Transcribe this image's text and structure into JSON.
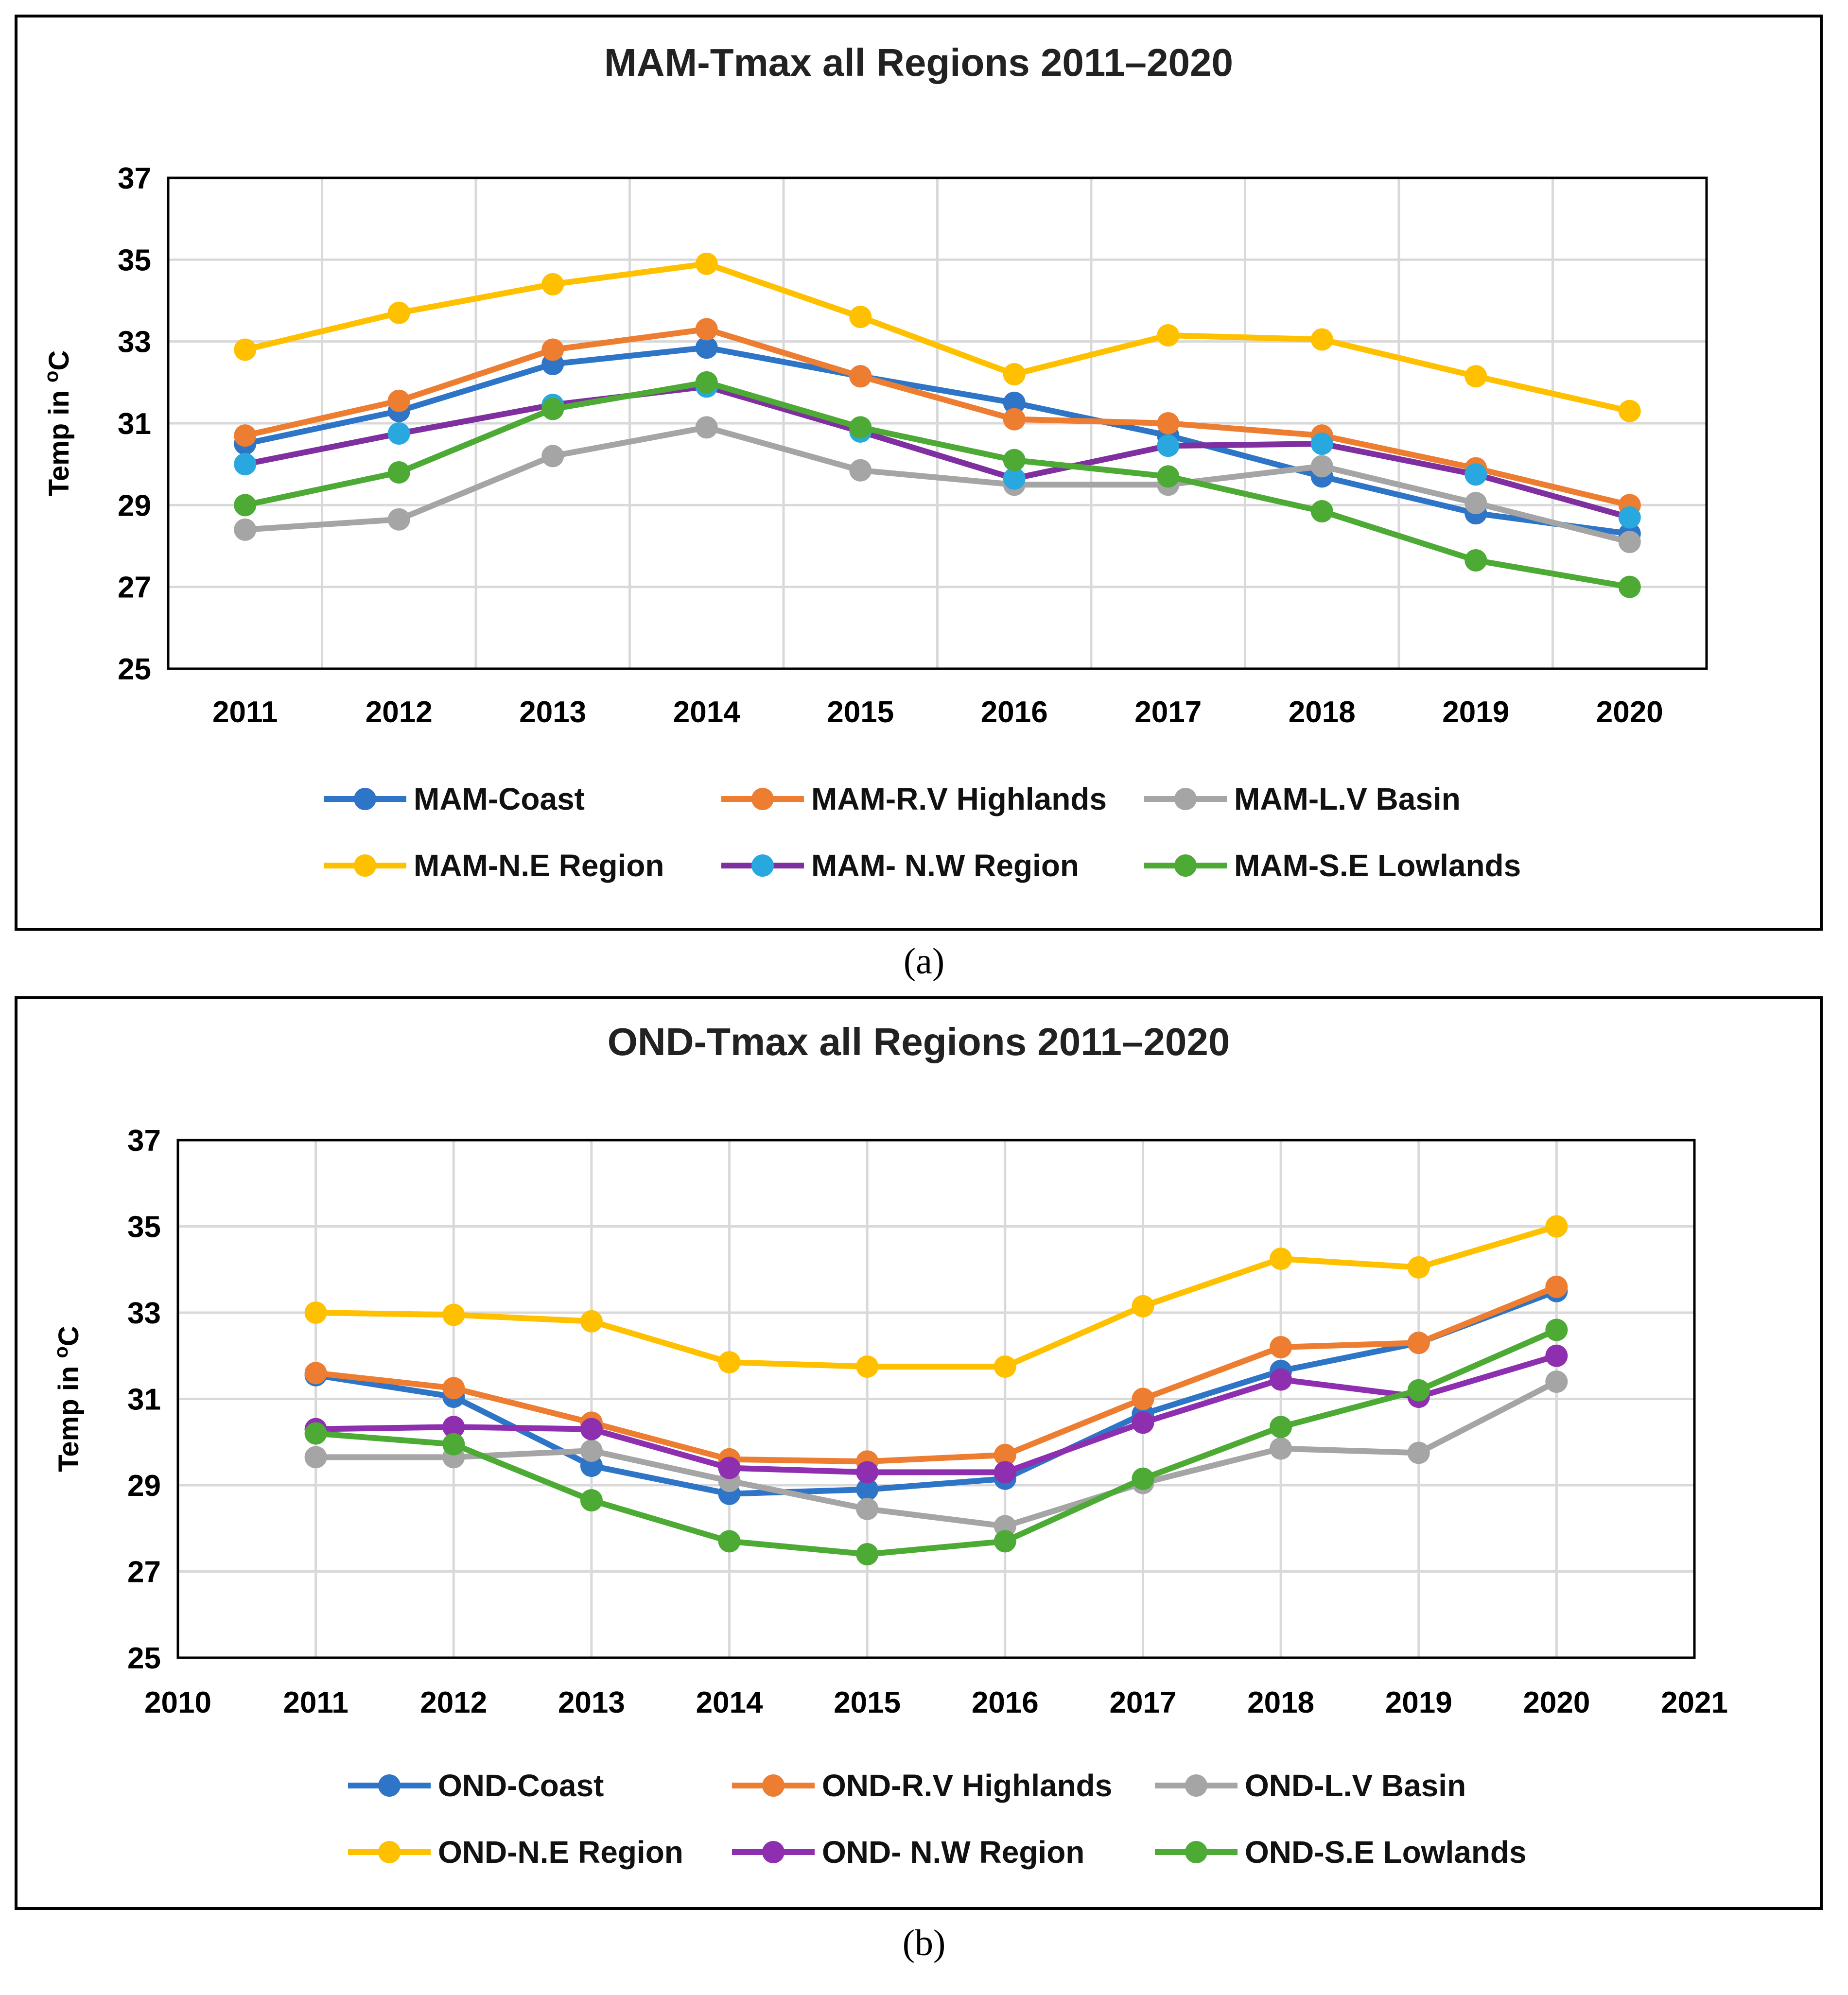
{
  "chart_data": [
    {
      "type": "line",
      "title": "MAM-Tmax all Regions 2011–2020",
      "ylabel": "Temp in oC",
      "ylabel_main": "Temp in ",
      "ylabel_sup": "o",
      "ylabel_unit": "C",
      "xlabel": "",
      "ylim": [
        25,
        37
      ],
      "yticks": [
        25,
        27,
        29,
        31,
        33,
        35,
        37
      ],
      "xlim": [
        2010.5,
        2020.5
      ],
      "xticks": [
        2011,
        2012,
        2013,
        2014,
        2015,
        2016,
        2017,
        2018,
        2019,
        2020
      ],
      "grid": true,
      "legend_position": "bottom",
      "caption": "(a)",
      "x": [
        2011,
        2012,
        2013,
        2014,
        2015,
        2016,
        2017,
        2018,
        2019,
        2020
      ],
      "series": [
        {
          "name": "MAM-Coast",
          "color": "#2E75C7",
          "values": [
            30.5,
            31.3,
            32.45,
            32.85,
            32.15,
            31.5,
            30.7,
            29.7,
            28.8,
            28.3
          ]
        },
        {
          "name": "MAM-R.V Highlands",
          "color": "#ED7D31",
          "values": [
            30.7,
            31.55,
            32.8,
            33.3,
            32.15,
            31.1,
            31.0,
            30.7,
            29.9,
            29.0
          ]
        },
        {
          "name": "MAM-L.V Basin",
          "color": "#A5A5A5",
          "values": [
            28.4,
            28.65,
            30.2,
            30.9,
            29.85,
            29.5,
            29.5,
            29.95,
            29.05,
            28.1
          ]
        },
        {
          "name": "MAM-N.E Region",
          "color": "#FFC000",
          "values": [
            32.8,
            33.7,
            34.4,
            34.9,
            33.6,
            32.2,
            33.15,
            33.05,
            32.15,
            31.3
          ]
        },
        {
          "name": "MAM- N.W Region",
          "color": "#1E9BE0",
          "marker": "#29A8E0",
          "line": "#7F2FA0",
          "values": [
            30.0,
            30.75,
            31.45,
            31.9,
            30.8,
            29.65,
            30.45,
            30.5,
            29.75,
            28.7
          ]
        },
        {
          "name": "MAM-S.E Lowlands",
          "color": "#4CAA35",
          "values": [
            29.0,
            29.8,
            31.35,
            32.0,
            30.9,
            30.1,
            29.7,
            28.85,
            27.65,
            27.0
          ]
        }
      ]
    },
    {
      "type": "line",
      "title": "OND-Tmax all Regions 2011–2020",
      "ylabel": "Temp in oC",
      "ylabel_main": "Temp in ",
      "ylabel_sup": "o",
      "ylabel_unit": "C",
      "xlabel": "",
      "ylim": [
        25,
        37
      ],
      "yticks": [
        25,
        27,
        29,
        31,
        33,
        35,
        37
      ],
      "xlim": [
        2010,
        2021
      ],
      "xticks": [
        2010,
        2011,
        2012,
        2013,
        2014,
        2015,
        2016,
        2017,
        2018,
        2019,
        2020,
        2021
      ],
      "grid": true,
      "legend_position": "bottom",
      "caption": "(b)",
      "x": [
        2011,
        2012,
        2013,
        2014,
        2015,
        2016,
        2017,
        2018,
        2019,
        2020
      ],
      "series": [
        {
          "name": "OND-Coast",
          "color": "#2E75C7",
          "values": [
            31.55,
            31.05,
            29.45,
            28.8,
            28.9,
            29.15,
            30.65,
            31.65,
            32.3,
            33.5
          ]
        },
        {
          "name": "OND-R.V Highlands",
          "color": "#ED7D31",
          "values": [
            31.6,
            31.25,
            30.45,
            29.6,
            29.55,
            29.7,
            31.0,
            32.2,
            32.3,
            33.6
          ]
        },
        {
          "name": "OND-L.V Basin",
          "color": "#A5A5A5",
          "values": [
            29.65,
            29.65,
            29.8,
            29.1,
            28.45,
            28.05,
            29.05,
            29.85,
            29.75,
            31.4
          ]
        },
        {
          "name": "OND-N.E Region",
          "color": "#FFC000",
          "values": [
            33.0,
            32.95,
            32.8,
            31.85,
            31.75,
            31.75,
            33.15,
            34.25,
            34.05,
            35.0
          ]
        },
        {
          "name": "OND- N.W Region",
          "color": "#8E2FB0",
          "values": [
            30.3,
            30.35,
            30.3,
            29.4,
            29.3,
            29.3,
            30.45,
            31.45,
            31.05,
            32.0
          ]
        },
        {
          "name": "OND-S.E Lowlands",
          "color": "#4CAA35",
          "values": [
            30.2,
            29.95,
            28.65,
            27.7,
            27.4,
            27.7,
            29.15,
            30.35,
            31.2,
            32.6
          ]
        }
      ]
    }
  ]
}
